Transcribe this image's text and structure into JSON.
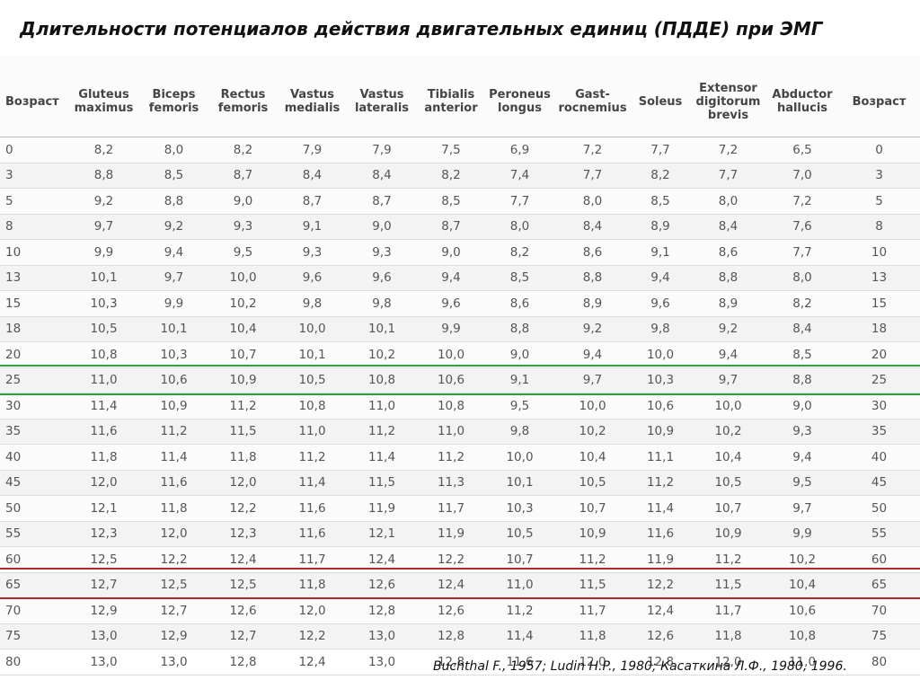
{
  "title": "Длительности потенциалов действия двигательных единиц (ПДДЕ) при ЭМГ",
  "source": "Buchthal F., 1957; Ludin H.P., 1980; Касаткина Л.Ф., 1980, 1996.",
  "colors": {
    "green_line": "#2ea043",
    "red_line": "#b3262b"
  },
  "table": {
    "headers": [
      [
        "Возраст"
      ],
      [
        "Gluteus",
        "maximus"
      ],
      [
        "Biceps",
        "femoris"
      ],
      [
        "Rectus",
        "femoris"
      ],
      [
        "Vastus",
        "medialis"
      ],
      [
        "Vastus",
        "lateralis"
      ],
      [
        "Tibialis",
        "anterior"
      ],
      [
        "Peroneus",
        "longus"
      ],
      [
        "Gast-",
        "rocnemius"
      ],
      [
        "Soleus"
      ],
      [
        "Extensor",
        "digitorum",
        "brevis"
      ],
      [
        "Abductor",
        "hallucis"
      ],
      [
        "Возраст"
      ]
    ],
    "rows": [
      [
        "0",
        "8,2",
        "8,0",
        "8,2",
        "7,9",
        "7,9",
        "7,5",
        "6,9",
        "7,2",
        "7,7",
        "7,2",
        "6,5",
        "0"
      ],
      [
        "3",
        "8,8",
        "8,5",
        "8,7",
        "8,4",
        "8,4",
        "8,2",
        "7,4",
        "7,7",
        "8,2",
        "7,7",
        "7,0",
        "3"
      ],
      [
        "5",
        "9,2",
        "8,8",
        "9,0",
        "8,7",
        "8,7",
        "8,5",
        "7,7",
        "8,0",
        "8,5",
        "8,0",
        "7,2",
        "5"
      ],
      [
        "8",
        "9,7",
        "9,2",
        "9,3",
        "9,1",
        "9,0",
        "8,7",
        "8,0",
        "8,4",
        "8,9",
        "8,4",
        "7,6",
        "8"
      ],
      [
        "10",
        "9,9",
        "9,4",
        "9,5",
        "9,3",
        "9,3",
        "9,0",
        "8,2",
        "8,6",
        "9,1",
        "8,6",
        "7,7",
        "10"
      ],
      [
        "13",
        "10,1",
        "9,7",
        "10,0",
        "9,6",
        "9,6",
        "9,4",
        "8,5",
        "8,8",
        "9,4",
        "8,8",
        "8,0",
        "13"
      ],
      [
        "15",
        "10,3",
        "9,9",
        "10,2",
        "9,8",
        "9,8",
        "9,6",
        "8,6",
        "8,9",
        "9,6",
        "8,9",
        "8,2",
        "15"
      ],
      [
        "18",
        "10,5",
        "10,1",
        "10,4",
        "10,0",
        "10,1",
        "9,9",
        "8,8",
        "9,2",
        "9,8",
        "9,2",
        "8,4",
        "18"
      ],
      [
        "20",
        "10,8",
        "10,3",
        "10,7",
        "10,1",
        "10,2",
        "10,0",
        "9,0",
        "9,4",
        "10,0",
        "9,4",
        "8,5",
        "20"
      ],
      [
        "25",
        "11,0",
        "10,6",
        "10,9",
        "10,5",
        "10,8",
        "10,6",
        "9,1",
        "9,7",
        "10,3",
        "9,7",
        "8,8",
        "25"
      ],
      [
        "30",
        "11,4",
        "10,9",
        "11,2",
        "10,8",
        "11,0",
        "10,8",
        "9,5",
        "10,0",
        "10,6",
        "10,0",
        "9,0",
        "30"
      ],
      [
        "35",
        "11,6",
        "11,2",
        "11,5",
        "11,0",
        "11,2",
        "11,0",
        "9,8",
        "10,2",
        "10,9",
        "10,2",
        "9,3",
        "35"
      ],
      [
        "40",
        "11,8",
        "11,4",
        "11,8",
        "11,2",
        "11,4",
        "11,2",
        "10,0",
        "10,4",
        "11,1",
        "10,4",
        "9,4",
        "40"
      ],
      [
        "45",
        "12,0",
        "11,6",
        "12,0",
        "11,4",
        "11,5",
        "11,3",
        "10,1",
        "10,5",
        "11,2",
        "10,5",
        "9,5",
        "45"
      ],
      [
        "50",
        "12,1",
        "11,8",
        "12,2",
        "11,6",
        "11,9",
        "11,7",
        "10,3",
        "10,7",
        "11,4",
        "10,7",
        "9,7",
        "50"
      ],
      [
        "55",
        "12,3",
        "12,0",
        "12,3",
        "11,6",
        "12,1",
        "11,9",
        "10,5",
        "10,9",
        "11,6",
        "10,9",
        "9,9",
        "55"
      ],
      [
        "60",
        "12,5",
        "12,2",
        "12,4",
        "11,7",
        "12,4",
        "12,2",
        "10,7",
        "11,2",
        "11,9",
        "11,2",
        "10,2",
        "60"
      ],
      [
        "65",
        "12,7",
        "12,5",
        "12,5",
        "11,8",
        "12,6",
        "12,4",
        "11,0",
        "11,5",
        "12,2",
        "11,5",
        "10,4",
        "65"
      ],
      [
        "70",
        "12,9",
        "12,7",
        "12,6",
        "12,0",
        "12,8",
        "12,6",
        "11,2",
        "11,7",
        "12,4",
        "11,7",
        "10,6",
        "70"
      ],
      [
        "75",
        "13,0",
        "12,9",
        "12,7",
        "12,2",
        "13,0",
        "12,8",
        "11,4",
        "11,8",
        "12,6",
        "11,8",
        "10,8",
        "75"
      ],
      [
        "80",
        "13,0",
        "13,0",
        "12,8",
        "12,4",
        "13,0",
        "12,8",
        "11,6",
        "12,0",
        "12,8",
        "12,0",
        "11,0",
        "80"
      ]
    ]
  }
}
